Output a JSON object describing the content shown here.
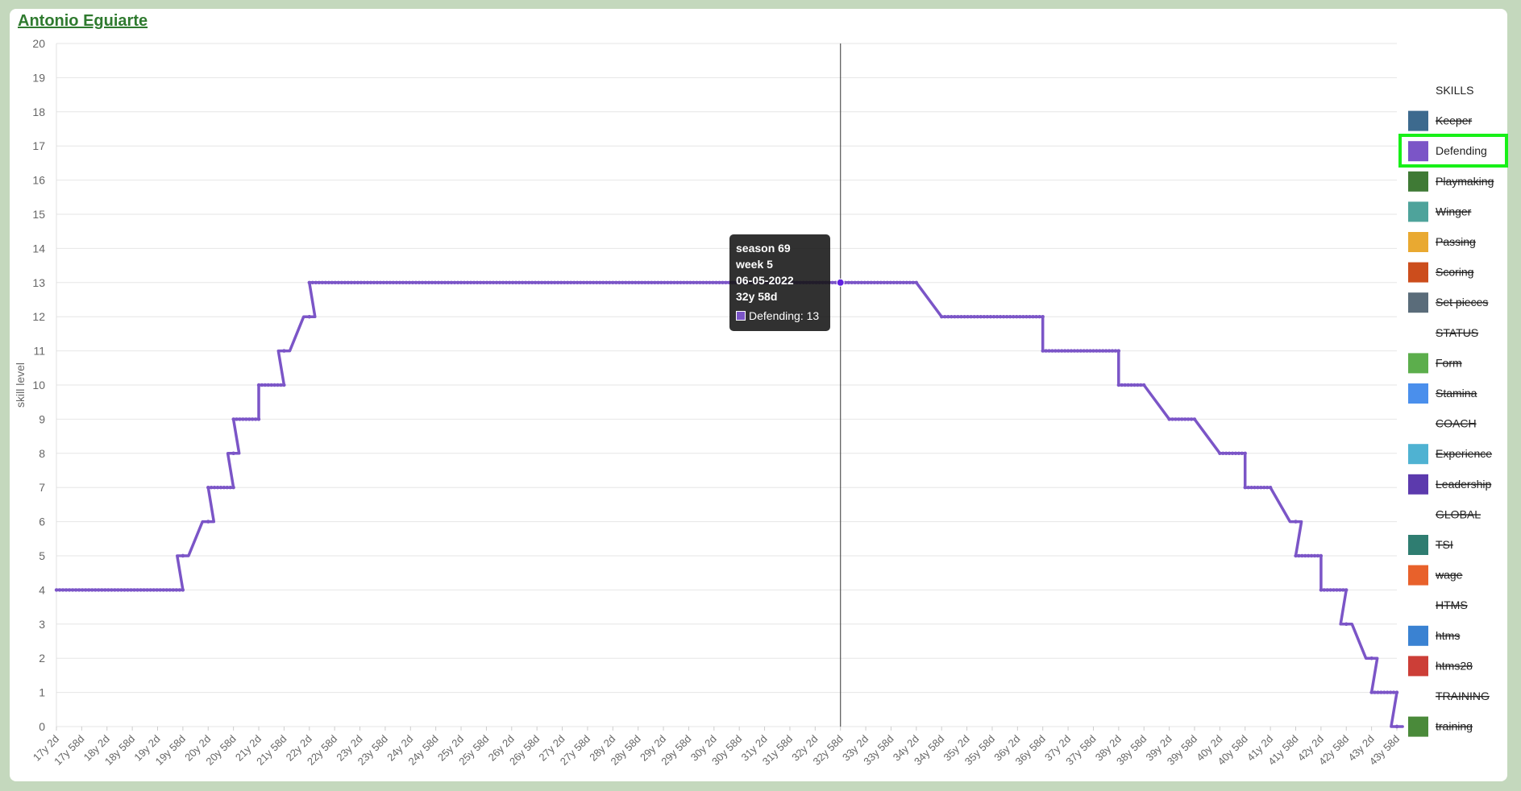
{
  "player": {
    "name": "Antonio Eguiarte"
  },
  "chart_data": {
    "type": "line",
    "ylabel": "skill level",
    "ylim": [
      0,
      20
    ],
    "yticks": [
      "0",
      "1",
      "2",
      "3",
      "4",
      "5",
      "6",
      "7",
      "8",
      "9",
      "10",
      "11",
      "12",
      "13",
      "14",
      "15",
      "16",
      "17",
      "18",
      "19",
      "20"
    ],
    "xticks": [
      "17y 2d",
      "17y 58d",
      "18y 2d",
      "18y 58d",
      "19y 2d",
      "19y 58d",
      "20y 2d",
      "20y 58d",
      "21y 2d",
      "21y 58d",
      "22y 2d",
      "22y 58d",
      "23y 2d",
      "23y 58d",
      "24y 2d",
      "24y 58d",
      "25y 2d",
      "25y 58d",
      "26y 2d",
      "26y 58d",
      "27y 2d",
      "27y 58d",
      "28y 2d",
      "28y 58d",
      "29y 2d",
      "29y 58d",
      "30y 2d",
      "30y 58d",
      "31y 2d",
      "31y 58d",
      "32y 2d",
      "32y 58d",
      "33y 2d",
      "33y 58d",
      "34y 2d",
      "34y 58d",
      "35y 2d",
      "35y 58d",
      "36y 2d",
      "36y 58d",
      "37y 2d",
      "37y 58d",
      "38y 2d",
      "38y 58d",
      "39y 2d",
      "39y 58d",
      "40y 2d",
      "40y 58d",
      "41y 2d",
      "41y 58d",
      "42y 2d",
      "42y 58d",
      "43y 2d",
      "43y 58d"
    ],
    "series": [
      {
        "name": "Defending",
        "color": "#7b55c7",
        "steps": [
          {
            "from": "17y 2d",
            "to": "19y 58d",
            "value": 4
          },
          {
            "from": "19y 58d",
            "to": "19y 58d",
            "value": 5
          },
          {
            "from": "20y 2d",
            "to": "20y 2d",
            "value": 6
          },
          {
            "from": "20y 2d",
            "to": "20y 58d",
            "value": 7
          },
          {
            "from": "20y 58d",
            "to": "20y 58d",
            "value": 8
          },
          {
            "from": "20y 58d",
            "to": "21y 2d",
            "value": 9
          },
          {
            "from": "21y 2d",
            "to": "21y 58d",
            "value": 10
          },
          {
            "from": "21y 58d",
            "to": "21y 58d",
            "value": 11
          },
          {
            "from": "22y 2d",
            "to": "22y 2d",
            "value": 12
          },
          {
            "from": "22y 2d",
            "to": "34y 2d",
            "value": 13
          },
          {
            "from": "34y 58d",
            "to": "36y 58d",
            "value": 12
          },
          {
            "from": "36y 58d",
            "to": "38y 2d",
            "value": 11
          },
          {
            "from": "38y 2d",
            "to": "38y 58d",
            "value": 10
          },
          {
            "from": "39y 2d",
            "to": "39y 58d",
            "value": 9
          },
          {
            "from": "40y 2d",
            "to": "40y 58d",
            "value": 8
          },
          {
            "from": "40y 58d",
            "to": "41y 2d",
            "value": 7
          },
          {
            "from": "41y 58d",
            "to": "41y 58d",
            "value": 6
          },
          {
            "from": "41y 58d",
            "to": "42y 2d",
            "value": 5
          },
          {
            "from": "42y 2d",
            "to": "42y 58d",
            "value": 4
          },
          {
            "from": "42y 58d",
            "to": "42y 58d",
            "value": 3
          },
          {
            "from": "43y 2d",
            "to": "43y 2d",
            "value": 2
          },
          {
            "from": "43y 2d",
            "to": "43y 58d",
            "value": 1
          },
          {
            "from": "43y 58d",
            "to": "43y 58d",
            "value": 0
          }
        ]
      }
    ],
    "crosshair_at": "32y 58d",
    "legend_position": "right"
  },
  "tooltip": {
    "season": "season 69",
    "week": "week 5",
    "date": "06-05-2022",
    "age": "32y 58d",
    "value_text": "Defending: 13"
  },
  "legend": [
    {
      "type": "header",
      "label": "SKILLS",
      "hidden": false
    },
    {
      "type": "item",
      "label": "Keeper",
      "color": "#3d6a8e",
      "hidden": true,
      "name": "legend-keeper"
    },
    {
      "type": "item",
      "label": "Defending",
      "color": "#7b55c7",
      "hidden": false,
      "name": "legend-defending"
    },
    {
      "type": "item",
      "label": "Playmaking",
      "color": "#3f7a35",
      "hidden": true,
      "name": "legend-playmaking"
    },
    {
      "type": "item",
      "label": "Winger",
      "color": "#4ea39b",
      "hidden": true,
      "name": "legend-winger"
    },
    {
      "type": "item",
      "label": "Passing",
      "color": "#e9a931",
      "hidden": true,
      "name": "legend-passing"
    },
    {
      "type": "item",
      "label": "Scoring",
      "color": "#cc4d1c",
      "hidden": true,
      "name": "legend-scoring"
    },
    {
      "type": "item",
      "label": "Set pieces",
      "color": "#5a6c7a",
      "hidden": true,
      "name": "legend-set-pieces"
    },
    {
      "type": "header",
      "label": "STATUS",
      "hidden": true
    },
    {
      "type": "item",
      "label": "Form",
      "color": "#5cae4c",
      "hidden": true,
      "name": "legend-form"
    },
    {
      "type": "item",
      "label": "Stamina",
      "color": "#4a8fec",
      "hidden": true,
      "name": "legend-stamina"
    },
    {
      "type": "header",
      "label": "COACH",
      "hidden": true
    },
    {
      "type": "item",
      "label": "Experience",
      "color": "#4fb2d2",
      "hidden": true,
      "name": "legend-experience"
    },
    {
      "type": "item",
      "label": "Leadership",
      "color": "#5c3aad",
      "hidden": true,
      "name": "legend-leadership"
    },
    {
      "type": "header",
      "label": "GLOBAL",
      "hidden": true
    },
    {
      "type": "item",
      "label": "TSI",
      "color": "#2f7d71",
      "hidden": true,
      "name": "legend-tsi"
    },
    {
      "type": "item",
      "label": "wage",
      "color": "#e8612b",
      "hidden": true,
      "name": "legend-wage"
    },
    {
      "type": "header",
      "label": "HTMS",
      "hidden": true
    },
    {
      "type": "item",
      "label": "htms",
      "color": "#3a82d2",
      "hidden": true,
      "name": "legend-htms"
    },
    {
      "type": "item",
      "label": "htms28",
      "color": "#cc3e37",
      "hidden": true,
      "name": "legend-htms28"
    },
    {
      "type": "header",
      "label": "TRAINING",
      "hidden": true
    },
    {
      "type": "item",
      "label": "training",
      "color": "#4a8a3a",
      "hidden": true,
      "name": "legend-training"
    }
  ],
  "selected_legend": "Defending"
}
